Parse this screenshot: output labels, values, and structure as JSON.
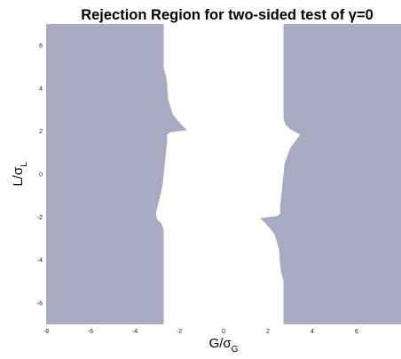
{
  "chart_data": {
    "type": "area",
    "title": "Rejection Region for two-sided test of γ=0",
    "xlabel": {
      "main": "G/σ",
      "sub": "G"
    },
    "ylabel": {
      "main": "L/σ",
      "sub": "L"
    },
    "xlim": [
      -8,
      8
    ],
    "ylim": [
      -7,
      7
    ],
    "xticks": [
      -8,
      -6,
      -4,
      -2,
      0,
      2,
      4,
      6
    ],
    "yticks": [
      -6,
      -4,
      -2,
      0,
      2,
      4,
      6
    ],
    "grid": false,
    "region_color": "#a9a9c1",
    "series": [
      {
        "name": "",
        "description": "left rejection region boundary: G/σG as a function of L/σL",
        "points": [
          [
            -2.7,
            -7.0
          ],
          [
            -2.7,
            -2.6
          ],
          [
            -2.8,
            -2.3
          ],
          [
            -3.0,
            -2.1
          ],
          [
            -3.05,
            -1.8
          ],
          [
            -2.9,
            -1.2
          ],
          [
            -2.75,
            -0.5
          ],
          [
            -2.65,
            0.5
          ],
          [
            -2.55,
            1.5
          ],
          [
            -2.55,
            1.85
          ],
          [
            -2.4,
            1.95
          ],
          [
            -1.65,
            2.05
          ],
          [
            -1.9,
            2.3
          ],
          [
            -2.3,
            2.8
          ],
          [
            -2.5,
            3.5
          ],
          [
            -2.55,
            4.2
          ],
          [
            -2.6,
            4.6
          ],
          [
            -2.7,
            4.95
          ],
          [
            -2.7,
            7.0
          ]
        ]
      },
      {
        "name": "",
        "description": "right rejection region boundary: G/σG as a function of L/σL",
        "points": [
          [
            2.7,
            7.0
          ],
          [
            2.7,
            2.6
          ],
          [
            2.8,
            2.3
          ],
          [
            3.0,
            2.1
          ],
          [
            3.45,
            1.85
          ],
          [
            3.0,
            1.2
          ],
          [
            2.75,
            0.5
          ],
          [
            2.65,
            -0.5
          ],
          [
            2.55,
            -1.5
          ],
          [
            2.55,
            -1.85
          ],
          [
            2.4,
            -1.95
          ],
          [
            1.65,
            -2.05
          ],
          [
            1.9,
            -2.3
          ],
          [
            2.3,
            -2.8
          ],
          [
            2.5,
            -3.5
          ],
          [
            2.55,
            -4.2
          ],
          [
            2.6,
            -4.6
          ],
          [
            2.7,
            -4.95
          ],
          [
            2.7,
            -7.0
          ]
        ]
      }
    ]
  }
}
